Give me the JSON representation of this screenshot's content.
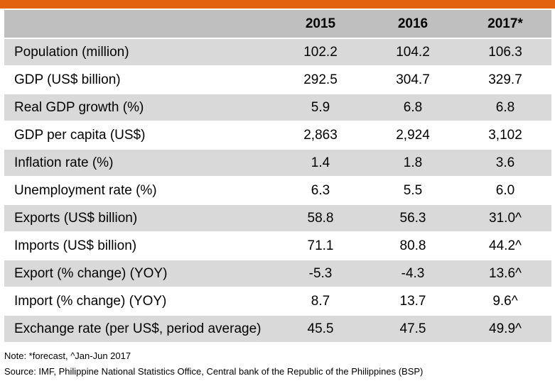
{
  "colors": {
    "accent_bar": "#e2620f",
    "header_bg": "#bfbfbf",
    "shaded_row_bg": "#d9d9d9"
  },
  "table": {
    "header": [
      "",
      "2015",
      "2016",
      "2017*"
    ],
    "rows": [
      {
        "label": "Population (million)",
        "values": [
          "102.2",
          "104.2",
          "106.3"
        ]
      },
      {
        "label": "GDP (US$ billion)",
        "values": [
          "292.5",
          "304.7",
          "329.7"
        ]
      },
      {
        "label": "Real GDP growth (%)",
        "values": [
          "5.9",
          "6.8",
          "6.8"
        ]
      },
      {
        "label": "GDP per capita (US$)",
        "values": [
          "2,863",
          "2,924",
          "3,102"
        ]
      },
      {
        "label": "Inflation rate (%)",
        "values": [
          "1.4",
          "1.8",
          "3.6"
        ]
      },
      {
        "label": "Unemployment rate (%)",
        "values": [
          "6.3",
          "5.5",
          "6.0"
        ]
      },
      {
        "label": "Exports (US$ billion)",
        "values": [
          "58.8",
          "56.3",
          "31.0^"
        ]
      },
      {
        "label": "Imports (US$ billion)",
        "values": [
          "71.1",
          "80.8",
          "44.2^"
        ]
      },
      {
        "label": "Export (% change) (YOY)",
        "values": [
          "-5.3",
          "-4.3",
          "13.6^"
        ]
      },
      {
        "label": "Import (% change) (YOY)",
        "values": [
          "8.7",
          "13.7",
          "9.6^"
        ]
      },
      {
        "label": "Exchange rate (per US$, period average)",
        "values": [
          "45.5",
          "47.5",
          "49.9^"
        ]
      }
    ]
  },
  "note": "Note: *forecast, ^Jan-Jun 2017",
  "source": "Source: IMF, Philippine National Statistics Office, Central bank of the Republic of the Philippines (BSP)"
}
